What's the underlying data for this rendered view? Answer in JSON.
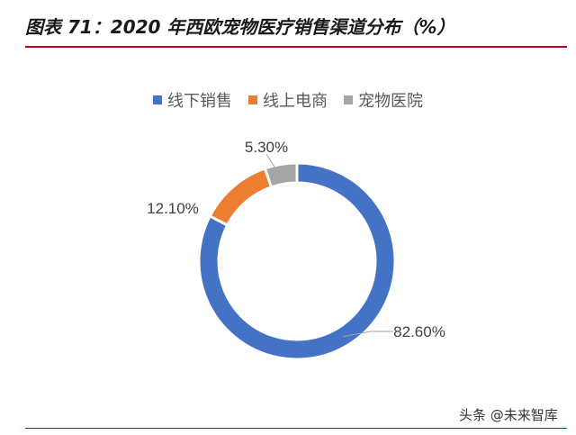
{
  "title": "图表 71：2020 年西欧宠物医疗销售渠道分布（%）",
  "watermark": "头条 @未来智库",
  "chart_data": {
    "type": "pie",
    "variant": "donut",
    "title": "图表 71：2020 年西欧宠物医疗销售渠道分布（%）",
    "legend_position": "top",
    "categories": [
      "线下销售",
      "线上电商",
      "宠物医院"
    ],
    "values": [
      82.6,
      12.1,
      5.3
    ],
    "labels": [
      "82.60%",
      "12.10%",
      "5.30%"
    ],
    "colors": [
      "#4472c4",
      "#ed7d31",
      "#a5a5a5"
    ],
    "unit": "%"
  }
}
